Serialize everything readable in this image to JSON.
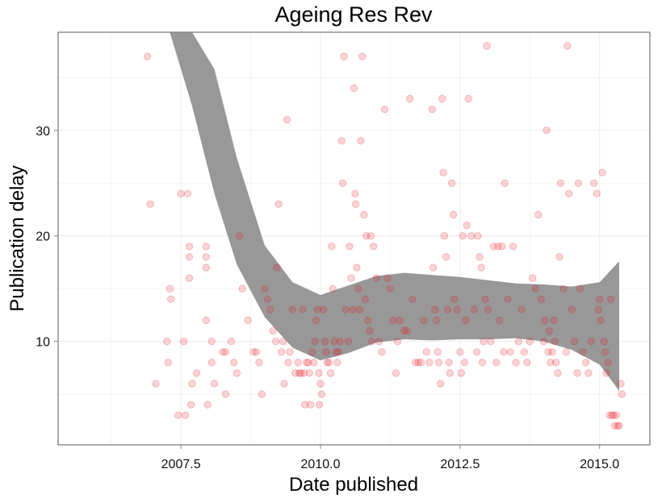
{
  "chart_data": {
    "type": "scatter",
    "title": "Ageing Res Rev",
    "xlabel": "Date published",
    "ylabel": "Publication delay",
    "xlim": [
      2005.3,
      2015.9
    ],
    "ylim": [
      0.2,
      39.3
    ],
    "x_ticks": [
      {
        "value": 2007.5,
        "label": "2007.5"
      },
      {
        "value": 2010.0,
        "label": "2010.0"
      },
      {
        "value": 2012.5,
        "label": "2012.5"
      },
      {
        "value": 2015.0,
        "label": "2015.0"
      }
    ],
    "y_ticks": [
      {
        "value": 10,
        "label": "10"
      },
      {
        "value": 20,
        "label": "20"
      },
      {
        "value": 30,
        "label": "30"
      }
    ],
    "grid": true,
    "point_color": "#e8131d",
    "band_color": "#929292",
    "smooth_band": {
      "x": [
        2006.9,
        2007.3,
        2007.7,
        2008.1,
        2008.5,
        2009.0,
        2009.5,
        2010.0,
        2010.5,
        2011.0,
        2011.5,
        2012.0,
        2012.5,
        2013.0,
        2013.5,
        2014.0,
        2014.5,
        2015.0,
        2015.35
      ],
      "lower": [
        39.3,
        39.3,
        32.3,
        24.0,
        17.3,
        12.3,
        9.4,
        8.2,
        8.9,
        9.9,
        10.2,
        10.1,
        10.2,
        10.2,
        10.3,
        10.0,
        9.2,
        7.8,
        5.3
      ],
      "upper": [
        39.3,
        39.3,
        39.3,
        35.8,
        27.4,
        19.1,
        15.6,
        14.4,
        15.3,
        16.2,
        16.5,
        16.3,
        16.1,
        15.8,
        15.5,
        15.4,
        15.2,
        15.6,
        17.6
      ]
    },
    "points": [
      [
        2006.9,
        37
      ],
      [
        2006.95,
        23
      ],
      [
        2007.05,
        6
      ],
      [
        2007.25,
        10
      ],
      [
        2007.27,
        8
      ],
      [
        2007.3,
        15
      ],
      [
        2007.32,
        14
      ],
      [
        2007.45,
        3
      ],
      [
        2007.5,
        24
      ],
      [
        2007.55,
        10
      ],
      [
        2007.58,
        3
      ],
      [
        2007.62,
        24
      ],
      [
        2007.65,
        19
      ],
      [
        2007.65,
        18
      ],
      [
        2007.65,
        16
      ],
      [
        2007.68,
        4
      ],
      [
        2007.7,
        6
      ],
      [
        2007.78,
        7
      ],
      [
        2007.95,
        19
      ],
      [
        2007.95,
        18
      ],
      [
        2007.95,
        17
      ],
      [
        2007.95,
        12
      ],
      [
        2007.98,
        4
      ],
      [
        2008.05,
        10
      ],
      [
        2008.05,
        8
      ],
      [
        2008.1,
        6
      ],
      [
        2008.25,
        9
      ],
      [
        2008.3,
        9
      ],
      [
        2008.3,
        5
      ],
      [
        2008.4,
        10
      ],
      [
        2008.45,
        8
      ],
      [
        2008.5,
        7
      ],
      [
        2008.55,
        20
      ],
      [
        2008.6,
        15
      ],
      [
        2008.7,
        12
      ],
      [
        2008.8,
        9
      ],
      [
        2008.85,
        9
      ],
      [
        2008.9,
        8
      ],
      [
        2008.95,
        5
      ],
      [
        2009.0,
        15
      ],
      [
        2009.05,
        14
      ],
      [
        2009.1,
        13
      ],
      [
        2009.15,
        11
      ],
      [
        2009.2,
        10
      ],
      [
        2009.22,
        17
      ],
      [
        2009.25,
        23
      ],
      [
        2009.3,
        9
      ],
      [
        2009.33,
        10
      ],
      [
        2009.35,
        6
      ],
      [
        2009.4,
        31
      ],
      [
        2009.42,
        8
      ],
      [
        2009.45,
        9
      ],
      [
        2009.5,
        13
      ],
      [
        2009.55,
        7
      ],
      [
        2009.6,
        8
      ],
      [
        2009.62,
        7
      ],
      [
        2009.65,
        7
      ],
      [
        2009.68,
        13
      ],
      [
        2009.7,
        7
      ],
      [
        2009.72,
        4
      ],
      [
        2009.75,
        8
      ],
      [
        2009.78,
        8
      ],
      [
        2009.8,
        7
      ],
      [
        2009.82,
        4
      ],
      [
        2009.85,
        9
      ],
      [
        2009.88,
        8
      ],
      [
        2009.9,
        10
      ],
      [
        2009.92,
        12
      ],
      [
        2009.95,
        13
      ],
      [
        2009.97,
        7
      ],
      [
        2009.98,
        4
      ],
      [
        2010.0,
        6
      ],
      [
        2010.02,
        5
      ],
      [
        2010.05,
        13
      ],
      [
        2010.08,
        10
      ],
      [
        2010.1,
        9
      ],
      [
        2010.12,
        8
      ],
      [
        2010.15,
        8
      ],
      [
        2010.18,
        7
      ],
      [
        2010.2,
        19
      ],
      [
        2010.22,
        15
      ],
      [
        2010.25,
        10
      ],
      [
        2010.28,
        9
      ],
      [
        2010.3,
        8
      ],
      [
        2010.32,
        9
      ],
      [
        2010.35,
        10
      ],
      [
        2010.38,
        29
      ],
      [
        2010.4,
        25
      ],
      [
        2010.42,
        37
      ],
      [
        2010.45,
        13
      ],
      [
        2010.5,
        10
      ],
      [
        2010.52,
        19
      ],
      [
        2010.55,
        16
      ],
      [
        2010.58,
        13
      ],
      [
        2010.6,
        34
      ],
      [
        2010.62,
        24
      ],
      [
        2010.63,
        23
      ],
      [
        2010.65,
        17
      ],
      [
        2010.68,
        15
      ],
      [
        2010.7,
        13
      ],
      [
        2010.72,
        29
      ],
      [
        2010.75,
        37
      ],
      [
        2010.78,
        22
      ],
      [
        2010.8,
        14
      ],
      [
        2010.82,
        20
      ],
      [
        2010.85,
        12
      ],
      [
        2010.88,
        11
      ],
      [
        2010.9,
        20
      ],
      [
        2010.92,
        10
      ],
      [
        2010.95,
        19
      ],
      [
        2011.0,
        16
      ],
      [
        2011.05,
        10
      ],
      [
        2011.1,
        9
      ],
      [
        2011.15,
        32
      ],
      [
        2011.2,
        16
      ],
      [
        2011.25,
        15
      ],
      [
        2011.3,
        12
      ],
      [
        2011.35,
        7
      ],
      [
        2011.38,
        10
      ],
      [
        2011.42,
        12
      ],
      [
        2011.5,
        11
      ],
      [
        2011.55,
        11
      ],
      [
        2011.6,
        33
      ],
      [
        2011.65,
        14
      ],
      [
        2011.7,
        8
      ],
      [
        2011.75,
        8
      ],
      [
        2011.8,
        8
      ],
      [
        2011.85,
        12
      ],
      [
        2011.9,
        9
      ],
      [
        2011.95,
        8
      ],
      [
        2012.0,
        32
      ],
      [
        2012.02,
        17
      ],
      [
        2012.05,
        13
      ],
      [
        2012.08,
        12
      ],
      [
        2012.1,
        9
      ],
      [
        2012.12,
        8
      ],
      [
        2012.15,
        6
      ],
      [
        2012.18,
        33
      ],
      [
        2012.2,
        26
      ],
      [
        2012.22,
        20
      ],
      [
        2012.25,
        18
      ],
      [
        2012.28,
        13
      ],
      [
        2012.3,
        8
      ],
      [
        2012.32,
        7
      ],
      [
        2012.35,
        25
      ],
      [
        2012.38,
        22
      ],
      [
        2012.4,
        14
      ],
      [
        2012.45,
        13
      ],
      [
        2012.5,
        9
      ],
      [
        2012.52,
        7
      ],
      [
        2012.55,
        20
      ],
      [
        2012.58,
        8
      ],
      [
        2012.6,
        12
      ],
      [
        2012.62,
        21
      ],
      [
        2012.65,
        33
      ],
      [
        2012.7,
        20
      ],
      [
        2012.75,
        13
      ],
      [
        2012.8,
        9
      ],
      [
        2012.82,
        20
      ],
      [
        2012.85,
        18
      ],
      [
        2012.88,
        17
      ],
      [
        2012.9,
        8
      ],
      [
        2012.92,
        10
      ],
      [
        2012.95,
        14
      ],
      [
        2012.98,
        38
      ],
      [
        2013.0,
        13
      ],
      [
        2013.05,
        10
      ],
      [
        2013.1,
        19
      ],
      [
        2013.15,
        8
      ],
      [
        2013.18,
        19
      ],
      [
        2013.2,
        12
      ],
      [
        2013.25,
        19
      ],
      [
        2013.28,
        9
      ],
      [
        2013.3,
        25
      ],
      [
        2013.35,
        14
      ],
      [
        2013.4,
        9
      ],
      [
        2013.45,
        19
      ],
      [
        2013.5,
        8
      ],
      [
        2013.55,
        10
      ],
      [
        2013.6,
        13
      ],
      [
        2013.65,
        9
      ],
      [
        2013.7,
        8
      ],
      [
        2013.75,
        10
      ],
      [
        2013.8,
        16
      ],
      [
        2013.85,
        15
      ],
      [
        2013.9,
        22
      ],
      [
        2013.95,
        14
      ],
      [
        2014.0,
        10
      ],
      [
        2014.02,
        12
      ],
      [
        2014.05,
        30
      ],
      [
        2014.08,
        9
      ],
      [
        2014.1,
        11
      ],
      [
        2014.12,
        8
      ],
      [
        2014.15,
        9
      ],
      [
        2014.18,
        12
      ],
      [
        2014.2,
        10
      ],
      [
        2014.22,
        8
      ],
      [
        2014.25,
        7
      ],
      [
        2014.28,
        18
      ],
      [
        2014.3,
        25
      ],
      [
        2014.35,
        15
      ],
      [
        2014.4,
        9
      ],
      [
        2014.42,
        38
      ],
      [
        2014.45,
        24
      ],
      [
        2014.5,
        13
      ],
      [
        2014.55,
        10
      ],
      [
        2014.6,
        7
      ],
      [
        2014.62,
        25
      ],
      [
        2014.65,
        15
      ],
      [
        2014.7,
        9
      ],
      [
        2014.75,
        8
      ],
      [
        2014.8,
        7
      ],
      [
        2014.85,
        10
      ],
      [
        2014.9,
        25
      ],
      [
        2014.95,
        24
      ],
      [
        2014.98,
        13
      ],
      [
        2015.0,
        14
      ],
      [
        2015.02,
        12
      ],
      [
        2015.05,
        26
      ],
      [
        2015.08,
        10
      ],
      [
        2015.1,
        9
      ],
      [
        2015.12,
        7
      ],
      [
        2015.15,
        8
      ],
      [
        2015.18,
        3
      ],
      [
        2015.2,
        14
      ],
      [
        2015.22,
        3
      ],
      [
        2015.25,
        3
      ],
      [
        2015.27,
        2
      ],
      [
        2015.3,
        3
      ],
      [
        2015.32,
        2
      ],
      [
        2015.35,
        2
      ],
      [
        2015.38,
        6
      ],
      [
        2015.4,
        5
      ]
    ]
  }
}
